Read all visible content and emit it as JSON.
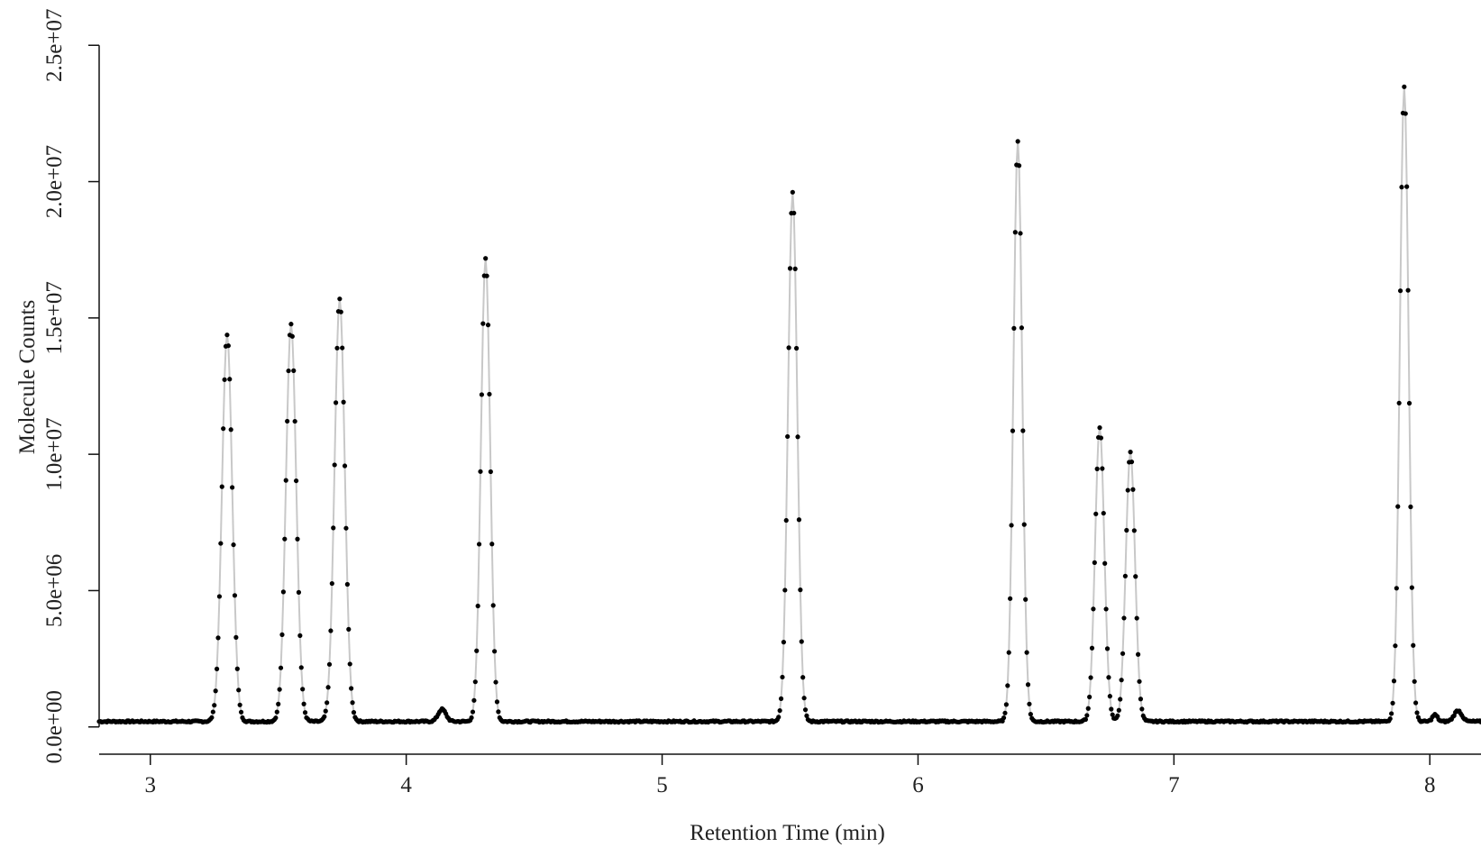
{
  "chart_data": {
    "type": "scatter",
    "title": "",
    "xlabel": "Retention Time (min)",
    "ylabel": "Molecule Counts",
    "xlim": [
      2.8,
      8.2
    ],
    "ylim": [
      -1000000,
      26000000
    ],
    "x_ticks": [
      3,
      4,
      5,
      6,
      7,
      8
    ],
    "x_tick_labels": [
      "3",
      "4",
      "5",
      "6",
      "7",
      "8"
    ],
    "y_ticks": [
      0,
      5000000,
      10000000,
      15000000,
      20000000,
      25000000
    ],
    "y_tick_labels": [
      "0.0e+00",
      "5.0e+06",
      "1.0e+07",
      "1.5e+07",
      "2.0e+07",
      "2.5e+07"
    ],
    "grid": false,
    "legend": "none",
    "point_color": "#000000",
    "line_color": "#c8c8c8",
    "baseline": 200000,
    "sampling_interval_min": 0.005,
    "peaks": [
      {
        "rt": 3.3,
        "height": 14200000,
        "sigma": 0.02
      },
      {
        "rt": 3.55,
        "height": 14600000,
        "sigma": 0.02
      },
      {
        "rt": 3.74,
        "height": 15500000,
        "sigma": 0.02
      },
      {
        "rt": 4.14,
        "height": 450000,
        "sigma": 0.015
      },
      {
        "rt": 4.31,
        "height": 17000000,
        "sigma": 0.018
      },
      {
        "rt": 5.51,
        "height": 19400000,
        "sigma": 0.018
      },
      {
        "rt": 6.39,
        "height": 21300000,
        "sigma": 0.017
      },
      {
        "rt": 6.71,
        "height": 10800000,
        "sigma": 0.018
      },
      {
        "rt": 6.83,
        "height": 9900000,
        "sigma": 0.018
      },
      {
        "rt": 7.9,
        "height": 23300000,
        "sigma": 0.017
      },
      {
        "rt": 8.02,
        "height": 250000,
        "sigma": 0.01
      },
      {
        "rt": 8.11,
        "height": 400000,
        "sigma": 0.015
      }
    ]
  }
}
